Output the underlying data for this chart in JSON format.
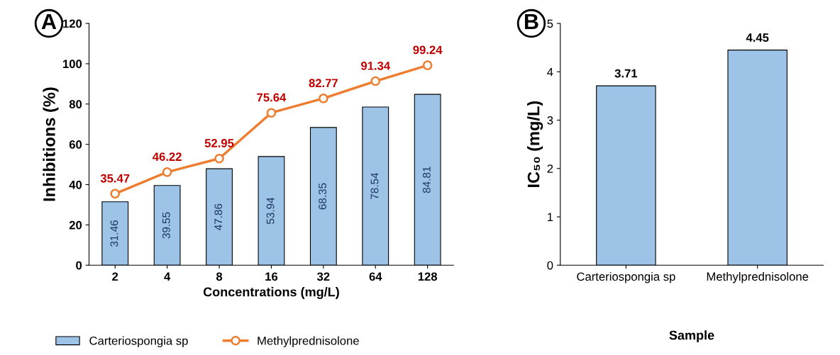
{
  "chart_data": [
    {
      "type": "bar",
      "categories": [
        "2",
        "4",
        "8",
        "16",
        "32",
        "64",
        "128"
      ],
      "xlabel": "Concentrations (mg/L)",
      "ylabel": "Inhibitions (%)",
      "ylim": [
        0,
        120
      ],
      "yticks": [
        0,
        20,
        40,
        60,
        80,
        100,
        120
      ],
      "grid": false,
      "legend": "bottom",
      "data_labels": true,
      "marker": "circle",
      "annotations": [
        "A"
      ],
      "series": [
        {
          "name": "Carteriospongia sp",
          "type": "bar",
          "color": "#9dc3e6",
          "values": [
            31.46,
            39.55,
            47.86,
            53.94,
            68.35,
            78.54,
            84.81
          ]
        },
        {
          "name": "Methylprednisolone",
          "type": "line",
          "color": "#ed7d31",
          "values": [
            35.47,
            46.22,
            52.95,
            75.64,
            82.77,
            91.34,
            99.24
          ]
        }
      ]
    },
    {
      "type": "bar",
      "categories": [
        "Carteriospongia sp",
        "Methylprednisolone"
      ],
      "xlabel": "Sample",
      "ylabel": "IC₅₀ (mg/L)",
      "ylim": [
        0,
        5
      ],
      "yticks": [
        0,
        1,
        2,
        3,
        4,
        5
      ],
      "grid": false,
      "data_labels": true,
      "annotations": [
        "B"
      ],
      "series": [
        {
          "color": "#9dc3e6",
          "values": [
            3.71,
            4.45
          ]
        }
      ]
    }
  ]
}
